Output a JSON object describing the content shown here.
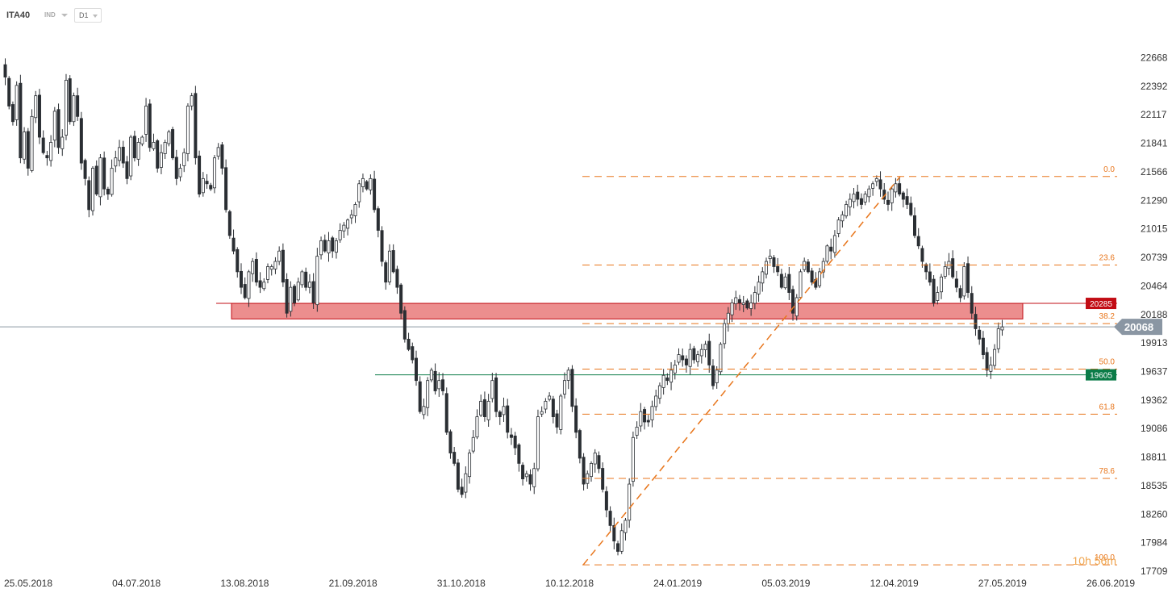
{
  "toolbar": {
    "symbol": "ITA40",
    "indicators_label": "IND",
    "timeframe": "D1"
  },
  "colors": {
    "fib": "#e8761c",
    "zone_fill": "#ea8282",
    "zone_border": "#c20c14",
    "support": "#0b7c48",
    "current": "#8a96a3",
    "candle": "#2a2e33"
  },
  "chart_data": {
    "type": "candlestick",
    "instrument": "ITA40",
    "timeframe": "D1",
    "y_axis": {
      "ticks": [
        22668,
        22392,
        22117,
        21841,
        21566,
        21290,
        21015,
        20739,
        20464,
        20188,
        19913,
        19637,
        19362,
        19086,
        18811,
        18535,
        18260,
        17984,
        17709
      ],
      "range": [
        17709,
        22944
      ]
    },
    "x_axis": {
      "ticks": [
        "25.05.2018",
        "04.07.2018",
        "13.08.2018",
        "21.09.2018",
        "31.10.2018",
        "10.12.2018",
        "24.01.2019",
        "05.03.2019",
        "12.04.2019",
        "27.05.2019",
        "26.06.2019"
      ]
    },
    "current_price": 20068,
    "resistance_zone": {
      "label": "20285",
      "low": 20145,
      "high": 20295
    },
    "support_level": {
      "label": "19605",
      "value": 19605
    },
    "fibonacci": {
      "from": {
        "date": "10.12.2018",
        "price": 17770
      },
      "to": {
        "date": "12.04.2019",
        "price": 21520
      },
      "levels": [
        {
          "label": "0.0",
          "price": 21520
        },
        {
          "label": "23.6",
          "price": 20665
        },
        {
          "label": "38.2",
          "price": 20100
        },
        {
          "label": "50.0",
          "price": 19660
        },
        {
          "label": "61.8",
          "price": 19225
        },
        {
          "label": "78.6",
          "price": 18605
        },
        {
          "label": "100.0",
          "price": 17770
        }
      ]
    },
    "countdown": "10h 56m",
    "closes": [
      22480,
      22200,
      22050,
      22400,
      21700,
      21950,
      21600,
      22100,
      22300,
      21900,
      21750,
      21700,
      21850,
      22150,
      21800,
      21900,
      22450,
      22050,
      22300,
      22100,
      21650,
      21500,
      21200,
      21600,
      21350,
      21700,
      21400,
      21350,
      21600,
      21700,
      21800,
      21650,
      21500,
      21900,
      21700,
      21850,
      21900,
      22200,
      21800,
      21850,
      21600,
      21750,
      21850,
      21950,
      21700,
      21500,
      21600,
      21750,
      22200,
      22300,
      21700,
      21350,
      21500,
      21450,
      21400,
      21700,
      21800,
      21600,
      21200,
      20950,
      20800,
      20600,
      20450,
      20350,
      20600,
      20700,
      20500,
      20450,
      20500,
      20650,
      20650,
      20700,
      20800,
      20500,
      20200,
      20450,
      20300,
      20500,
      20600,
      20450,
      20500,
      20300,
      20750,
      20900,
      20800,
      20900,
      20800,
      20900,
      21000,
      21050,
      21100,
      21150,
      21250,
      21450,
      21500,
      21400,
      21500,
      21200,
      21000,
      20700,
      20500,
      20800,
      20600,
      20450,
      20200,
      19950,
      19850,
      19750,
      19550,
      19250,
      19300,
      19550,
      19650,
      19450,
      19550,
      19450,
      19050,
      18850,
      18750,
      18500,
      18450,
      18650,
      18850,
      19000,
      19200,
      19350,
      19200,
      19350,
      19550,
      19250,
      19200,
      19300,
      19050,
      19000,
      18900,
      18750,
      18600,
      18650,
      18550,
      18700,
      19200,
      19250,
      19350,
      19400,
      19200,
      19100,
      19400,
      19550,
      19650,
      19300,
      19050,
      18800,
      18550,
      18650,
      18750,
      18850,
      18700,
      18500,
      18300,
      18150,
      18000,
      17900,
      18100,
      18200,
      18550,
      19000,
      19100,
      19250,
      19150,
      19150,
      19300,
      19400,
      19500,
      19600,
      19550,
      19650,
      19700,
      19800,
      19750,
      19700,
      19850,
      19750,
      19800,
      19850,
      19900,
      19700,
      19500,
      19650,
      19900,
      20100,
      20200,
      20300,
      20350,
      20300,
      20300,
      20250,
      20300,
      20400,
      20500,
      20600,
      20700,
      20750,
      20650,
      20600,
      20450,
      20550,
      20400,
      20200,
      20350,
      20600,
      20700,
      20600,
      20500,
      20450,
      20600,
      20700,
      20850,
      20800,
      20950,
      21100,
      21150,
      21250,
      21300,
      21350,
      21300,
      21250,
      21350,
      21400,
      21450,
      21500,
      21400,
      21300,
      21250,
      21400,
      21450,
      21350,
      21300,
      21250,
      21150,
      20950,
      20850,
      20700,
      20600,
      20500,
      20300,
      20400,
      20550,
      20650,
      20700,
      20550,
      20450,
      20350,
      20650,
      20400,
      20200,
      20050,
      19950,
      19800,
      19650,
      19700,
      19850,
      20050,
      20068
    ]
  }
}
